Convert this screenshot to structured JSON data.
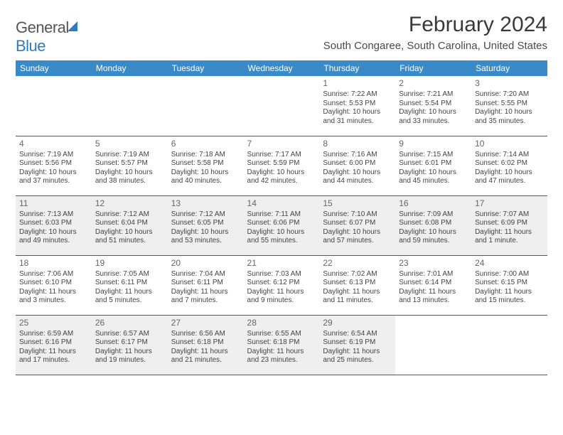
{
  "brand": {
    "part1": "General",
    "part2": "Blue"
  },
  "title": "February 2024",
  "location": "South Congaree, South Carolina, United States",
  "colors": {
    "header_bg": "#3a8ac8",
    "header_text": "#ffffff",
    "rule": "#2e5f8a",
    "shade_bg": "#efefef",
    "body_text": "#444444",
    "title_text": "#3a3a3a"
  },
  "weekdays": [
    "Sunday",
    "Monday",
    "Tuesday",
    "Wednesday",
    "Thursday",
    "Friday",
    "Saturday"
  ],
  "weeks": [
    [
      {
        "day": "",
        "lines": []
      },
      {
        "day": "",
        "lines": []
      },
      {
        "day": "",
        "lines": []
      },
      {
        "day": "",
        "lines": []
      },
      {
        "day": "1",
        "lines": [
          "Sunrise: 7:22 AM",
          "Sunset: 5:53 PM",
          "Daylight: 10 hours and 31 minutes."
        ]
      },
      {
        "day": "2",
        "lines": [
          "Sunrise: 7:21 AM",
          "Sunset: 5:54 PM",
          "Daylight: 10 hours and 33 minutes."
        ]
      },
      {
        "day": "3",
        "lines": [
          "Sunrise: 7:20 AM",
          "Sunset: 5:55 PM",
          "Daylight: 10 hours and 35 minutes."
        ]
      }
    ],
    [
      {
        "day": "4",
        "lines": [
          "Sunrise: 7:19 AM",
          "Sunset: 5:56 PM",
          "Daylight: 10 hours and 37 minutes."
        ]
      },
      {
        "day": "5",
        "lines": [
          "Sunrise: 7:19 AM",
          "Sunset: 5:57 PM",
          "Daylight: 10 hours and 38 minutes."
        ]
      },
      {
        "day": "6",
        "lines": [
          "Sunrise: 7:18 AM",
          "Sunset: 5:58 PM",
          "Daylight: 10 hours and 40 minutes."
        ]
      },
      {
        "day": "7",
        "lines": [
          "Sunrise: 7:17 AM",
          "Sunset: 5:59 PM",
          "Daylight: 10 hours and 42 minutes."
        ]
      },
      {
        "day": "8",
        "lines": [
          "Sunrise: 7:16 AM",
          "Sunset: 6:00 PM",
          "Daylight: 10 hours and 44 minutes."
        ]
      },
      {
        "day": "9",
        "lines": [
          "Sunrise: 7:15 AM",
          "Sunset: 6:01 PM",
          "Daylight: 10 hours and 45 minutes."
        ]
      },
      {
        "day": "10",
        "lines": [
          "Sunrise: 7:14 AM",
          "Sunset: 6:02 PM",
          "Daylight: 10 hours and 47 minutes."
        ]
      }
    ],
    [
      {
        "day": "11",
        "shade": true,
        "lines": [
          "Sunrise: 7:13 AM",
          "Sunset: 6:03 PM",
          "Daylight: 10 hours and 49 minutes."
        ]
      },
      {
        "day": "12",
        "shade": true,
        "lines": [
          "Sunrise: 7:12 AM",
          "Sunset: 6:04 PM",
          "Daylight: 10 hours and 51 minutes."
        ]
      },
      {
        "day": "13",
        "shade": true,
        "lines": [
          "Sunrise: 7:12 AM",
          "Sunset: 6:05 PM",
          "Daylight: 10 hours and 53 minutes."
        ]
      },
      {
        "day": "14",
        "shade": true,
        "lines": [
          "Sunrise: 7:11 AM",
          "Sunset: 6:06 PM",
          "Daylight: 10 hours and 55 minutes."
        ]
      },
      {
        "day": "15",
        "shade": true,
        "lines": [
          "Sunrise: 7:10 AM",
          "Sunset: 6:07 PM",
          "Daylight: 10 hours and 57 minutes."
        ]
      },
      {
        "day": "16",
        "shade": true,
        "lines": [
          "Sunrise: 7:09 AM",
          "Sunset: 6:08 PM",
          "Daylight: 10 hours and 59 minutes."
        ]
      },
      {
        "day": "17",
        "shade": true,
        "lines": [
          "Sunrise: 7:07 AM",
          "Sunset: 6:09 PM",
          "Daylight: 11 hours and 1 minute."
        ]
      }
    ],
    [
      {
        "day": "18",
        "lines": [
          "Sunrise: 7:06 AM",
          "Sunset: 6:10 PM",
          "Daylight: 11 hours and 3 minutes."
        ]
      },
      {
        "day": "19",
        "lines": [
          "Sunrise: 7:05 AM",
          "Sunset: 6:11 PM",
          "Daylight: 11 hours and 5 minutes."
        ]
      },
      {
        "day": "20",
        "lines": [
          "Sunrise: 7:04 AM",
          "Sunset: 6:11 PM",
          "Daylight: 11 hours and 7 minutes."
        ]
      },
      {
        "day": "21",
        "lines": [
          "Sunrise: 7:03 AM",
          "Sunset: 6:12 PM",
          "Daylight: 11 hours and 9 minutes."
        ]
      },
      {
        "day": "22",
        "lines": [
          "Sunrise: 7:02 AM",
          "Sunset: 6:13 PM",
          "Daylight: 11 hours and 11 minutes."
        ]
      },
      {
        "day": "23",
        "lines": [
          "Sunrise: 7:01 AM",
          "Sunset: 6:14 PM",
          "Daylight: 11 hours and 13 minutes."
        ]
      },
      {
        "day": "24",
        "lines": [
          "Sunrise: 7:00 AM",
          "Sunset: 6:15 PM",
          "Daylight: 11 hours and 15 minutes."
        ]
      }
    ],
    [
      {
        "day": "25",
        "shade": true,
        "lines": [
          "Sunrise: 6:59 AM",
          "Sunset: 6:16 PM",
          "Daylight: 11 hours and 17 minutes."
        ]
      },
      {
        "day": "26",
        "shade": true,
        "lines": [
          "Sunrise: 6:57 AM",
          "Sunset: 6:17 PM",
          "Daylight: 11 hours and 19 minutes."
        ]
      },
      {
        "day": "27",
        "shade": true,
        "lines": [
          "Sunrise: 6:56 AM",
          "Sunset: 6:18 PM",
          "Daylight: 11 hours and 21 minutes."
        ]
      },
      {
        "day": "28",
        "shade": true,
        "lines": [
          "Sunrise: 6:55 AM",
          "Sunset: 6:18 PM",
          "Daylight: 11 hours and 23 minutes."
        ]
      },
      {
        "day": "29",
        "shade": true,
        "lines": [
          "Sunrise: 6:54 AM",
          "Sunset: 6:19 PM",
          "Daylight: 11 hours and 25 minutes."
        ]
      },
      {
        "day": "",
        "lines": []
      },
      {
        "day": "",
        "lines": []
      }
    ]
  ]
}
